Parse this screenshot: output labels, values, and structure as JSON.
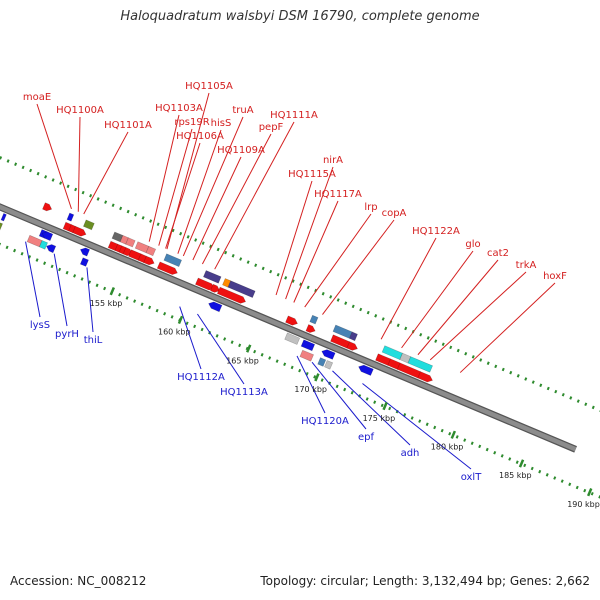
{
  "title": "Haloquadratum walsbyi DSM 16790, complete genome",
  "footer": {
    "accession": "Accession: NC_008212",
    "summary": "Topology: circular; Length: 3,132,494 bp; Genes: 2,662"
  },
  "colors": {
    "backbone": "#8c8c8c",
    "tick": "#2e8b2e",
    "top_label": "#d42020",
    "bottom_label": "#1a1acc"
  },
  "ticks": [
    {
      "label": "155 kbp",
      "pos": 155
    },
    {
      "label": "160 kbp",
      "pos": 160
    },
    {
      "label": "165 kbp",
      "pos": 165
    },
    {
      "label": "170 kbp",
      "pos": 170
    },
    {
      "label": "175 kbp",
      "pos": 175
    },
    {
      "label": "180 kbp",
      "pos": 180
    },
    {
      "label": "185 kbp",
      "pos": 185
    },
    {
      "label": "190 kbp",
      "pos": 190
    }
  ],
  "top_labels": [
    {
      "text": "moaE",
      "pos": 150.3
    },
    {
      "text": "HQ1100A",
      "pos": 150.8
    },
    {
      "text": "HQ1101A",
      "pos": 151.2
    },
    {
      "text": "HQ1105A",
      "pos": 157.3
    },
    {
      "text": "HQ1103A",
      "pos": 156.0
    },
    {
      "text": "rps19R",
      "pos": 156.7
    },
    {
      "text": "hisS",
      "pos": 158.1
    },
    {
      "text": "truA",
      "pos": 158.5
    },
    {
      "text": "HQ1106A",
      "pos": 157.2
    },
    {
      "text": "pepF",
      "pos": 159.9
    },
    {
      "text": "HQ1109A",
      "pos": 159.2
    },
    {
      "text": "HQ1111A",
      "pos": 160.8
    },
    {
      "text": "nirA",
      "pos": 166.0
    },
    {
      "text": "HQ1115A",
      "pos": 165.3
    },
    {
      "text": "HQ1117A",
      "pos": 166.6
    },
    {
      "text": "lrp",
      "pos": 167.4
    },
    {
      "text": "copA",
      "pos": 168.7
    },
    {
      "text": "HQ1122A",
      "pos": 173.0
    },
    {
      "text": "glo",
      "pos": 174.5
    },
    {
      "text": "cat2",
      "pos": 175.7
    },
    {
      "text": "trkA",
      "pos": 176.6
    },
    {
      "text": "hoxF",
      "pos": 178.8
    }
  ],
  "bottom_labels": [
    {
      "text": "lysS",
      "pos": 148.3
    },
    {
      "text": "pyrH",
      "pos": 150.4
    },
    {
      "text": "thiL",
      "pos": 152.8
    },
    {
      "text": "HQ1112A",
      "pos": 159.6
    },
    {
      "text": "HQ1113A",
      "pos": 160.9
    },
    {
      "text": "HQ1120A",
      "pos": 168.2
    },
    {
      "text": "epf",
      "pos": 169.3
    },
    {
      "text": "adh",
      "pos": 170.8
    },
    {
      "text": "oxlT",
      "pos": 173.0
    }
  ],
  "features": [
    {
      "name": "gene-strip",
      "pos": 146.2,
      "row": "rev",
      "len": 0.2,
      "color": "#1010e0",
      "shape": "block"
    },
    {
      "name": "gene-strip",
      "pos": 146.2,
      "row": "rev2",
      "len": 0.2,
      "color": "#6b8e23",
      "shape": "block"
    },
    {
      "name": "gene",
      "pos": 148.5,
      "row": "fwd_out",
      "len": 0.3,
      "color": "#ee1111",
      "shape": "arrow_r"
    },
    {
      "name": "gene",
      "pos": 148.4,
      "row": "rev2",
      "len": 0.9,
      "color": "#f08080",
      "shape": "block"
    },
    {
      "name": "gene",
      "pos": 149.3,
      "row": "rev2",
      "len": 0.4,
      "color": "#22dddd",
      "shape": "block"
    },
    {
      "name": "gene",
      "pos": 149.0,
      "row": "rev",
      "len": 0.4,
      "color": "#1010e0",
      "shape": "block"
    },
    {
      "name": "gene",
      "pos": 149.4,
      "row": "rev",
      "len": 0.4,
      "color": "#1010e0",
      "shape": "arrow_l"
    },
    {
      "name": "gene",
      "pos": 150.0,
      "row": "rev2",
      "len": 0.3,
      "color": "#1010e0",
      "shape": "arrow_l"
    },
    {
      "name": "gene",
      "pos": 150.3,
      "row": "fwd_out",
      "len": 0.3,
      "color": "#1010e0",
      "shape": "block"
    },
    {
      "name": "gene",
      "pos": 150.3,
      "row": "fwd",
      "len": 0.4,
      "color": "#ee1111",
      "shape": "arrow_r"
    },
    {
      "name": "gene",
      "pos": 150.7,
      "row": "fwd",
      "len": 0.3,
      "color": "#ee1111",
      "shape": "arrow_r"
    },
    {
      "name": "gene",
      "pos": 151.0,
      "row": "fwd",
      "len": 0.6,
      "color": "#ee1111",
      "shape": "arrow_r"
    },
    {
      "name": "gene",
      "pos": 151.5,
      "row": "fwd_out",
      "len": 0.6,
      "color": "#6b8e23",
      "shape": "block"
    },
    {
      "name": "gene",
      "pos": 152.2,
      "row": "rev",
      "len": 0.3,
      "color": "#1010e0",
      "shape": "arrow_l"
    },
    {
      "name": "gene",
      "pos": 152.3,
      "row": "rev2",
      "len": 0.4,
      "color": "#1010e0",
      "shape": "block"
    },
    {
      "name": "gene",
      "pos": 153.6,
      "row": "fwd_out",
      "len": 0.6,
      "color": "#666666",
      "shape": "block"
    },
    {
      "name": "gene",
      "pos": 154.2,
      "row": "fwd_out",
      "len": 0.4,
      "color": "#f08080",
      "shape": "block"
    },
    {
      "name": "gene",
      "pos": 154.6,
      "row": "fwd_out",
      "len": 0.5,
      "color": "#f08080",
      "shape": "block"
    },
    {
      "name": "gene",
      "pos": 155.3,
      "row": "fwd_out",
      "len": 0.8,
      "color": "#f08080",
      "shape": "block"
    },
    {
      "name": "gene",
      "pos": 156.1,
      "row": "fwd_out",
      "len": 0.5,
      "color": "#f08080",
      "shape": "block"
    },
    {
      "name": "gene",
      "pos": 153.6,
      "row": "fwd",
      "len": 0.5,
      "color": "#ee1111",
      "shape": "arrow_r"
    },
    {
      "name": "gene",
      "pos": 154.1,
      "row": "fwd",
      "len": 0.3,
      "color": "#ee1111",
      "shape": "arrow_r"
    },
    {
      "name": "gene",
      "pos": 154.4,
      "row": "fwd",
      "len": 0.3,
      "color": "#ee1111",
      "shape": "arrow_r"
    },
    {
      "name": "gene",
      "pos": 154.7,
      "row": "fwd",
      "len": 0.3,
      "color": "#ee1111",
      "shape": "arrow_r"
    },
    {
      "name": "gene",
      "pos": 155.1,
      "row": "fwd",
      "len": 0.7,
      "color": "#ee1111",
      "shape": "arrow_r"
    },
    {
      "name": "gene",
      "pos": 155.8,
      "row": "fwd",
      "len": 0.4,
      "color": "#ee1111",
      "shape": "arrow_r"
    },
    {
      "name": "gene",
      "pos": 156.2,
      "row": "fwd",
      "len": 0.4,
      "color": "#ee1111",
      "shape": "arrow_r"
    },
    {
      "name": "gene",
      "pos": 157.4,
      "row": "fwd_out",
      "len": 1.1,
      "color": "#4682b4",
      "shape": "block"
    },
    {
      "name": "gene",
      "pos": 157.2,
      "row": "fwd",
      "len": 1.1,
      "color": "#ee1111",
      "shape": "arrow_r"
    },
    {
      "name": "gene",
      "pos": 161.6,
      "row": "rev",
      "len": 0.6,
      "color": "#1010e0",
      "shape": "arrow_l"
    },
    {
      "name": "gene",
      "pos": 160.3,
      "row": "fwd_out",
      "len": 1.1,
      "color": "#483d8b",
      "shape": "block"
    },
    {
      "name": "gene",
      "pos": 160.0,
      "row": "fwd",
      "len": 1.0,
      "color": "#ee1111",
      "shape": "arrow_r"
    },
    {
      "name": "gene",
      "pos": 161.1,
      "row": "fwd",
      "len": 0.3,
      "color": "#ee1111",
      "shape": "arrow_r"
    },
    {
      "name": "gene",
      "pos": 161.7,
      "row": "fwd_out",
      "len": 0.4,
      "color": "#ff8c00",
      "shape": "block"
    },
    {
      "name": "gene",
      "pos": 162.1,
      "row": "fwd_out",
      "len": 1.8,
      "color": "#483d8b",
      "shape": "block"
    },
    {
      "name": "gene",
      "pos": 161.6,
      "row": "fwd",
      "len": 1.7,
      "color": "#ee1111",
      "shape": "arrow_r"
    },
    {
      "name": "gene",
      "pos": 167.0,
      "row": "rev",
      "len": 0.9,
      "color": "#c0c0c0",
      "shape": "block"
    },
    {
      "name": "gene",
      "pos": 168.2,
      "row": "rev",
      "len": 0.8,
      "color": "#1010e0",
      "shape": "block"
    },
    {
      "name": "gene",
      "pos": 168.4,
      "row": "rev2",
      "len": 0.8,
      "color": "#f08080",
      "shape": "block"
    },
    {
      "name": "gene",
      "pos": 166.6,
      "row": "fwd",
      "len": 0.5,
      "color": "#ee1111",
      "shape": "arrow_r"
    },
    {
      "name": "gene",
      "pos": 168.1,
      "row": "fwd_out",
      "len": 0.4,
      "color": "#4682b4",
      "shape": "block"
    },
    {
      "name": "gene",
      "pos": 168.1,
      "row": "fwd",
      "len": 0.3,
      "color": "#ee1111",
      "shape": "arrow_r"
    },
    {
      "name": "gene",
      "pos": 169.9,
      "row": "rev",
      "len": 0.6,
      "color": "#1010e0",
      "shape": "arrow_l"
    },
    {
      "name": "gene",
      "pos": 169.7,
      "row": "rev2",
      "len": 0.4,
      "color": "#4682b4",
      "shape": "block"
    },
    {
      "name": "gene",
      "pos": 170.2,
      "row": "rev2",
      "len": 0.4,
      "color": "#c0c0c0",
      "shape": "block"
    },
    {
      "name": "gene",
      "pos": 169.8,
      "row": "fwd_out",
      "len": 1.2,
      "color": "#4682b4",
      "shape": "block"
    },
    {
      "name": "gene",
      "pos": 171.0,
      "row": "fwd_out",
      "len": 0.4,
      "color": "#483d8b",
      "shape": "block"
    },
    {
      "name": "gene",
      "pos": 169.9,
      "row": "fwd",
      "len": 1.2,
      "color": "#ee1111",
      "shape": "arrow_r"
    },
    {
      "name": "gene",
      "pos": 171.1,
      "row": "fwd",
      "len": 0.4,
      "color": "#ee1111",
      "shape": "arrow_r"
    },
    {
      "name": "gene",
      "pos": 172.6,
      "row": "rev",
      "len": 0.7,
      "color": "#1010e0",
      "shape": "arrow_l"
    },
    {
      "name": "gene",
      "pos": 173.4,
      "row": "fwd_out",
      "len": 1.3,
      "color": "#22dddd",
      "shape": "block"
    },
    {
      "name": "gene",
      "pos": 174.7,
      "row": "fwd_out",
      "len": 0.6,
      "color": "#c0c0c0",
      "shape": "block"
    },
    {
      "name": "gene",
      "pos": 175.3,
      "row": "fwd_out",
      "len": 1.6,
      "color": "#22dddd",
      "shape": "block"
    },
    {
      "name": "gene",
      "pos": 173.2,
      "row": "fwd",
      "len": 0.9,
      "color": "#ee1111",
      "shape": "arrow_r"
    },
    {
      "name": "gene",
      "pos": 174.1,
      "row": "fwd",
      "len": 0.7,
      "color": "#ee1111",
      "shape": "arrow_r"
    },
    {
      "name": "gene",
      "pos": 174.8,
      "row": "fwd",
      "len": 1.5,
      "color": "#ee1111",
      "shape": "arrow_r"
    },
    {
      "name": "gene",
      "pos": 176.3,
      "row": "fwd",
      "len": 0.7,
      "color": "#ee1111",
      "shape": "arrow_r"
    }
  ]
}
